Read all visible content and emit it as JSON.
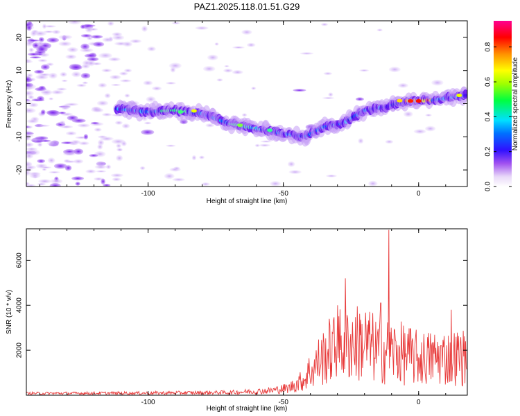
{
  "title": "PAZ1.2025.118.01.51.G29",
  "chart_data": [
    {
      "type": "heatmap",
      "xlabel": "Height of straight line (km)",
      "ylabel": "Frequency (Hz)",
      "xlim": [
        -145,
        18
      ],
      "ylim": [
        -25,
        25
      ],
      "xticks": [
        -100,
        -50,
        0
      ],
      "yticks": [
        -20,
        -10,
        0,
        10,
        20
      ],
      "colorbar": {
        "label": "Normalized spectral amplitude",
        "range": [
          0,
          0.95
        ],
        "ticks": [
          0.0,
          0.2,
          0.4,
          0.6,
          0.8
        ]
      },
      "ridge": [
        {
          "x": -112,
          "y": -1.5
        },
        {
          "x": -100,
          "y": -2.5
        },
        {
          "x": -90,
          "y": -2.0
        },
        {
          "x": -80,
          "y": -3.0
        },
        {
          "x": -70,
          "y": -6.0
        },
        {
          "x": -60,
          "y": -7.5
        },
        {
          "x": -50,
          "y": -9.0
        },
        {
          "x": -42,
          "y": -10.0
        },
        {
          "x": -35,
          "y": -7.0
        },
        {
          "x": -28,
          "y": -6.0
        },
        {
          "x": -20,
          "y": -2.0
        },
        {
          "x": -12,
          "y": -1.0
        },
        {
          "x": -5,
          "y": 0.8
        },
        {
          "x": 5,
          "y": 1.0
        },
        {
          "x": 17,
          "y": 2.5
        }
      ]
    },
    {
      "type": "line",
      "xlabel": "Height of straight line (km)",
      "ylabel": "SNR (10 * v/v)",
      "xlim": [
        -145,
        18
      ],
      "ylim": [
        0,
        7400
      ],
      "xticks": [
        -100,
        -50,
        0
      ],
      "yticks": [
        2000,
        4000,
        6000
      ],
      "series_color": "#e83a3a",
      "envelope": [
        {
          "x": -145,
          "y": 100
        },
        {
          "x": -100,
          "y": 120
        },
        {
          "x": -70,
          "y": 150
        },
        {
          "x": -55,
          "y": 250
        },
        {
          "x": -48,
          "y": 400
        },
        {
          "x": -42,
          "y": 900
        },
        {
          "x": -37,
          "y": 2300
        },
        {
          "x": -33,
          "y": 3000
        },
        {
          "x": -28,
          "y": 3500
        },
        {
          "x": -20,
          "y": 3600
        },
        {
          "x": -15,
          "y": 3000
        },
        {
          "x": -10,
          "y": 3000
        },
        {
          "x": -5,
          "y": 2800
        },
        {
          "x": 0,
          "y": 2500
        },
        {
          "x": 10,
          "y": 2600
        },
        {
          "x": 18,
          "y": 2600
        }
      ],
      "peaks": [
        {
          "x": -27,
          "y": 5200
        },
        {
          "x": -11,
          "y": 7350
        },
        {
          "x": -14,
          "y": 4100
        },
        {
          "x": -30,
          "y": 4000
        },
        {
          "x": 12,
          "y": 3800
        }
      ]
    }
  ]
}
